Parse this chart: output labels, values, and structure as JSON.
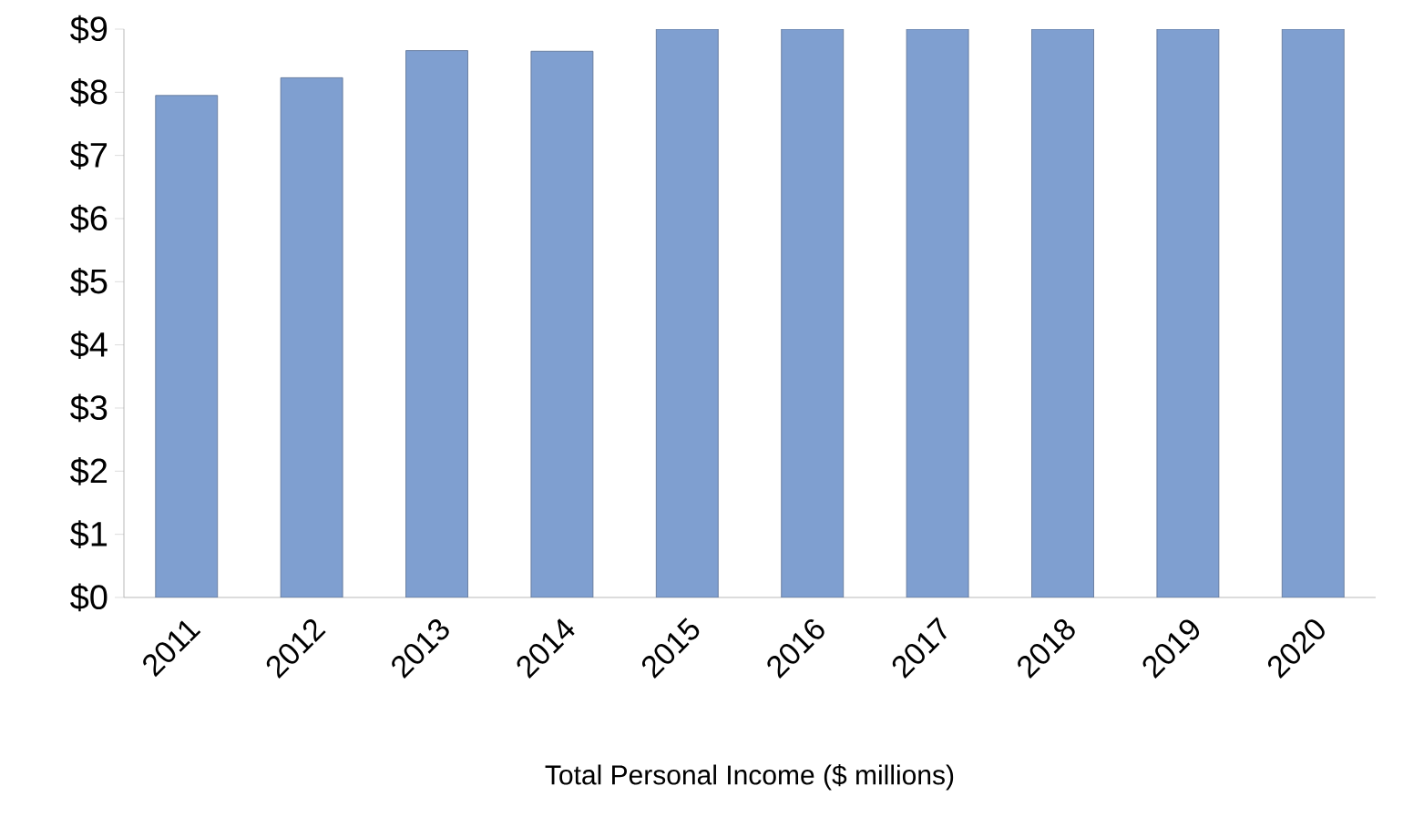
{
  "chart_data": {
    "type": "bar",
    "xlabel": "Total Personal Income ($ millions)",
    "categories": [
      "2011",
      "2012",
      "2013",
      "2014",
      "2015",
      "2016",
      "2017",
      "2018",
      "2019",
      "2020"
    ],
    "values": [
      7.95,
      8.23,
      8.66,
      8.65,
      9.0,
      9.0,
      9.0,
      9.0,
      9.0,
      9.0
    ],
    "color": "#7f9fd0",
    "ylim": [
      0,
      9
    ],
    "yticks": [
      {
        "value": 0,
        "label": "$0"
      },
      {
        "value": 1,
        "label": "$1"
      },
      {
        "value": 2,
        "label": "$2"
      },
      {
        "value": 3,
        "label": "$3"
      },
      {
        "value": 4,
        "label": "$4"
      },
      {
        "value": 5,
        "label": "$5"
      },
      {
        "value": 6,
        "label": "$6"
      },
      {
        "value": 7,
        "label": "$7"
      },
      {
        "value": 8,
        "label": "$8"
      },
      {
        "value": 9,
        "label": "$9"
      }
    ],
    "grid": false
  }
}
